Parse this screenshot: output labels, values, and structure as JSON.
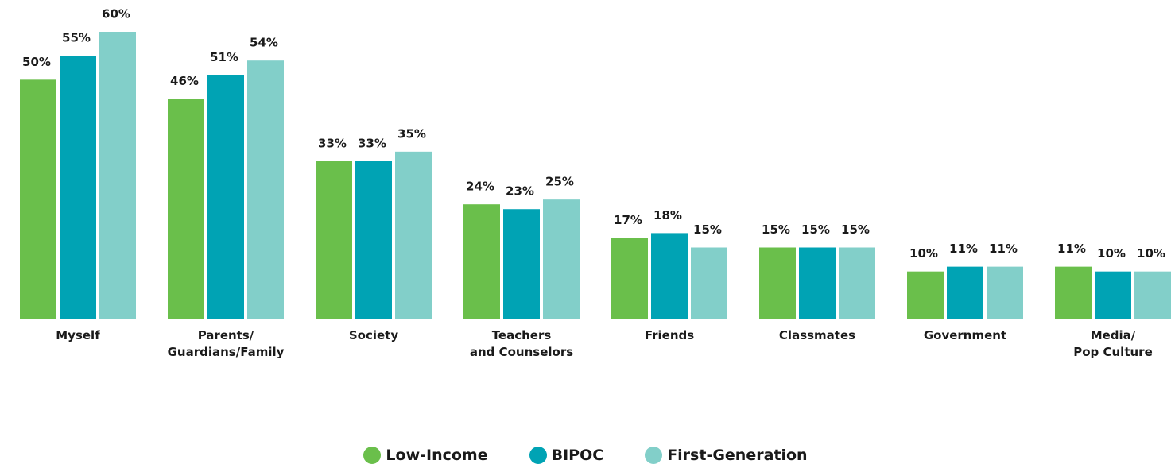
{
  "chart_data": {
    "type": "bar",
    "categories": [
      "Myself",
      "Parents/\nGuardians/Family",
      "Society",
      "Teachers\nand Counselors",
      "Friends",
      "Classmates",
      "Government",
      "Media/\nPop Culture"
    ],
    "series": [
      {
        "name": "Low-Income",
        "color": "#6abf4b",
        "values": [
          50,
          46,
          33,
          24,
          17,
          15,
          10,
          11
        ],
        "value_labels": [
          "50%",
          "46%",
          "33%",
          "24%",
          "17%",
          "15%",
          "10%",
          "11%"
        ]
      },
      {
        "name": "BIPOC",
        "color": "#00a3b4",
        "values": [
          55,
          51,
          33,
          23,
          18,
          15,
          11,
          10
        ],
        "value_labels": [
          "55%",
          "51%",
          "33%",
          "23%",
          "18%",
          "15%",
          "11%",
          "10%"
        ]
      },
      {
        "name": "First-Generation",
        "color": "#82cfc9",
        "values": [
          60,
          54,
          35,
          25,
          15,
          15,
          11,
          10
        ],
        "value_labels": [
          "60%",
          "54%",
          "35%",
          "25%",
          "15%",
          "15%",
          "11%",
          "10%"
        ]
      }
    ],
    "ylim": [
      0,
      60
    ],
    "legend": "bottom"
  }
}
